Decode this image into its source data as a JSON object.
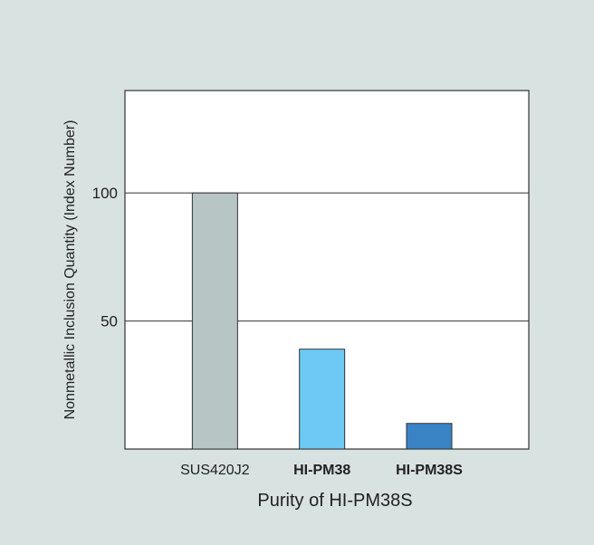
{
  "chart_data": {
    "type": "bar",
    "categories": [
      "SUS420J2",
      "HI-PM38",
      "HI-PM38S"
    ],
    "category_bold": [
      false,
      true,
      true
    ],
    "values": [
      100,
      39,
      10
    ],
    "ylim": [
      0,
      140
    ],
    "yticks": [
      50,
      100
    ],
    "gridlines": [
      50,
      100
    ],
    "bar_colors": [
      "#b8c5c5",
      "#6ccaf4",
      "#3a84c6"
    ],
    "title": "",
    "xlabel": "Purity of HI-PM38S",
    "ylabel": "Nonmetallic Inclusion Quantity (Index Number)",
    "legend": "none"
  }
}
